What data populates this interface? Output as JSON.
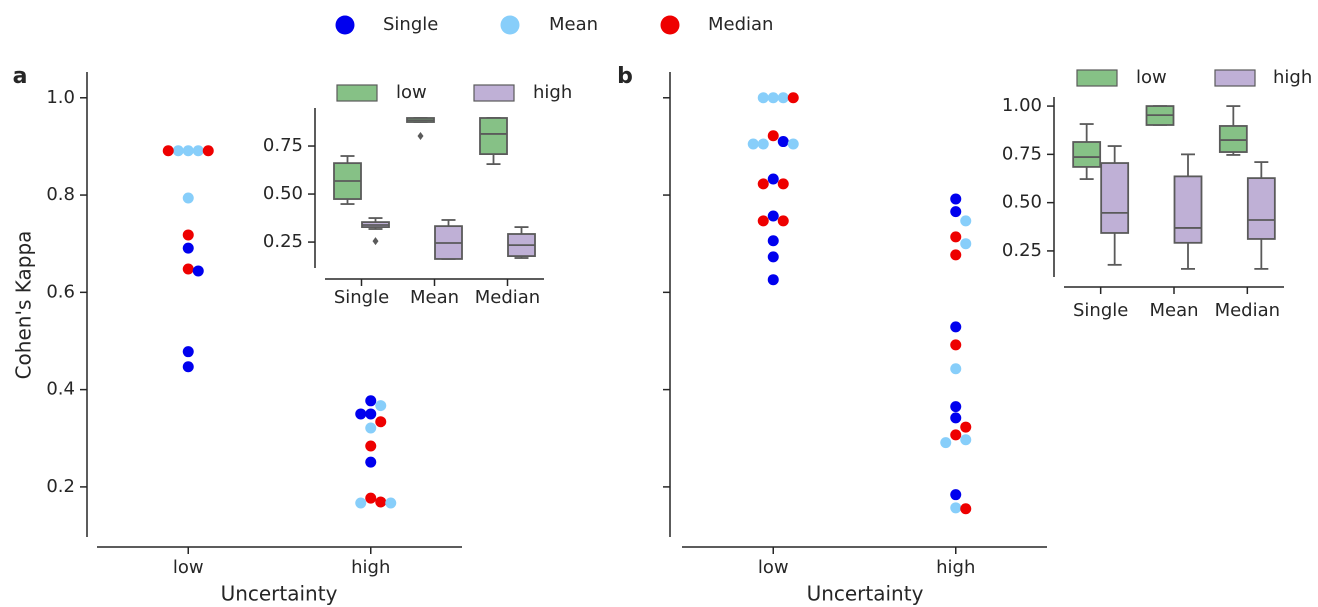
{
  "chart_data": [
    {
      "type": "strip",
      "panel_label": "a",
      "x_label": "Uncertainty",
      "y_label": "Cohen's Kappa",
      "categories": [
        "low",
        "high"
      ],
      "ylim": [
        0.097,
        1.053
      ],
      "yticks": [
        0.2,
        0.4,
        0.6,
        0.8,
        {
          "value": 1.0,
          "label": "1.0"
        }
      ],
      "legend": "top",
      "series": [
        {
          "name": "Single",
          "color": "#0000ee",
          "values": [
            [
              0.691,
              0.644,
              0.478,
              0.447
            ],
            [
              0.377,
              0.35,
              0.35,
              0.251
            ]
          ]
        },
        {
          "name": "Mean",
          "color": "#87cefa",
          "values": [
            [
              0.891,
              0.891,
              0.891,
              0.794
            ],
            [
              0.367,
              0.321,
              0.167,
              0.167
            ]
          ]
        },
        {
          "name": "Median",
          "color": "#ee0000",
          "values": [
            [
              0.891,
              0.891,
              0.718,
              0.648
            ],
            [
              0.334,
              0.284,
              0.177,
              0.169
            ]
          ]
        }
      ]
    },
    {
      "type": "box",
      "categories": [
        "Single",
        "Mean",
        "Median"
      ],
      "ylim": [
        0.115,
        0.948
      ],
      "yticks": [
        0.25,
        {
          "value": 0.5,
          "label": "0.50"
        },
        0.75
      ],
      "legend": "upper",
      "series": [
        {
          "name": "low",
          "color": "#86c186",
          "whislo": [
            0.448,
            0.875,
            0.656
          ],
          "q1": [
            0.474,
            0.875,
            0.708
          ],
          "med": [
            0.568,
            0.885,
            0.813
          ],
          "q3": [
            0.661,
            0.896,
            0.896
          ],
          "whishi": [
            0.698,
            0.896,
            0.896
          ],
          "fliers": [
            [],
            [
              0.802
            ],
            []
          ]
        },
        {
          "name": "high",
          "color": "#bfb0d6",
          "whislo": [
            0.318,
            0.162,
            0.167
          ],
          "q1": [
            0.328,
            0.162,
            0.177
          ],
          "med": [
            0.339,
            0.245,
            0.234
          ],
          "q3": [
            0.354,
            0.333,
            0.292
          ],
          "whishi": [
            0.375,
            0.365,
            0.328
          ],
          "fliers": [
            [
              0.255
            ],
            [],
            []
          ]
        }
      ]
    },
    {
      "type": "strip",
      "panel_label": "b",
      "x_label": "Uncertainty",
      "sharey": true,
      "categories": [
        "low",
        "high"
      ],
      "series": [
        {
          "color": "#0000ee",
          "values": [
            [
              0.91,
              0.833,
              0.757,
              0.706,
              0.673,
              0.626
            ],
            [
              0.792,
              0.766,
              0.529,
              0.365,
              0.342,
              0.184
            ]
          ]
        },
        {
          "color": "#87cefa",
          "values": [
            [
              1.0,
              1.0,
              1.0,
              0.905,
              0.905,
              0.905
            ],
            [
              0.747,
              0.7,
              0.443,
              0.297,
              0.291,
              0.157
            ]
          ]
        },
        {
          "color": "#ee0000",
          "values": [
            [
              1.0,
              0.922,
              0.823,
              0.823,
              0.747,
              0.747
            ],
            [
              0.714,
              0.677,
              0.492,
              0.323,
              0.307,
              0.155
            ]
          ]
        }
      ]
    },
    {
      "type": "box",
      "categories": [
        "Single",
        "Mean",
        "Median"
      ],
      "ylim": [
        0.115,
        1.047
      ],
      "yticks": [
        0.25,
        {
          "value": 0.5,
          "label": "0.50"
        },
        0.75,
        {
          "value": 1.0,
          "label": "1.00"
        }
      ],
      "legend": "upper",
      "series": [
        {
          "name": "low",
          "color": "#86c186",
          "whislo": [
            0.622,
            0.902,
            0.747
          ],
          "q1": [
            0.685,
            0.902,
            0.762
          ],
          "med": [
            0.736,
            0.953,
            0.824
          ],
          "q3": [
            0.814,
            1.0,
            0.897
          ],
          "whishi": [
            0.907,
            1.0,
            1.0
          ],
          "fliers": [
            [],
            [],
            []
          ]
        },
        {
          "name": "high",
          "color": "#bfb0d6",
          "whislo": [
            0.178,
            0.157,
            0.157
          ],
          "q1": [
            0.343,
            0.292,
            0.312
          ],
          "med": [
            0.447,
            0.369,
            0.41
          ],
          "q3": [
            0.705,
            0.636,
            0.627
          ],
          "whishi": [
            0.793,
            0.75,
            0.71
          ],
          "fliers": [
            [],
            [],
            []
          ]
        }
      ]
    }
  ]
}
